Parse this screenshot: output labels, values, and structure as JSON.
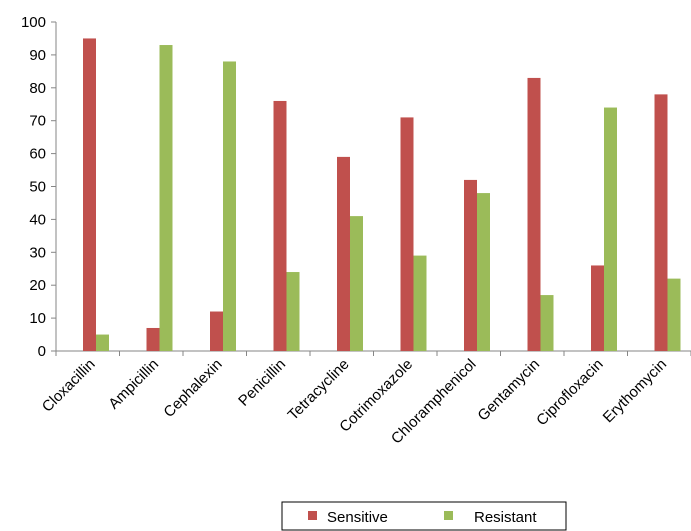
{
  "chart_data": {
    "type": "bar",
    "title": "",
    "xlabel": "",
    "ylabel": "",
    "ylim": [
      0,
      100
    ],
    "yticks": [
      0,
      10,
      20,
      30,
      40,
      50,
      60,
      70,
      80,
      90,
      100
    ],
    "grid": false,
    "legend_position": "bottom",
    "categories": [
      "Cloxacillin",
      "Ampicillin",
      "Cephalexin",
      "Penicillin",
      "Tetracycline",
      "Cotrimoxazole",
      "Chloramphenicol",
      "Gentamycin",
      "Ciprofloxacin",
      "Erythomycin"
    ],
    "series": [
      {
        "name": "Sensitive",
        "color": "#c0504d",
        "values": [
          95,
          7,
          12,
          76,
          59,
          71,
          52,
          83,
          26,
          78
        ]
      },
      {
        "name": "Resistant",
        "color": "#9bbb59",
        "values": [
          5,
          93,
          88,
          24,
          41,
          29,
          48,
          17,
          74,
          22
        ]
      }
    ]
  }
}
